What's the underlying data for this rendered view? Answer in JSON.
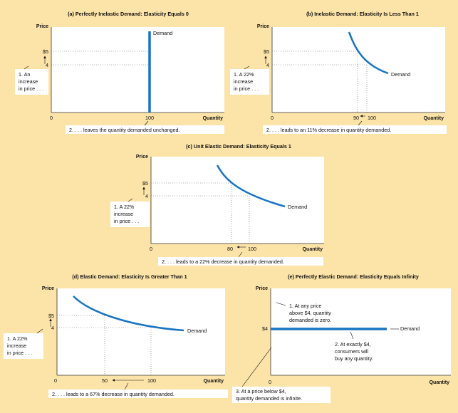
{
  "panels": [
    {
      "title": "(a) Perfectly Inelastic Demand: Elasticity Equals 0",
      "y_axis_label": "Price",
      "x_axis_label": "Quantity",
      "curve_label": "Demand",
      "origin_label": "0",
      "y_ticks": [
        "$5",
        "4"
      ],
      "x_ticks": [
        "100"
      ],
      "note_left": [
        "1. An",
        "increase",
        "in price . . ."
      ],
      "note_bottom": "2. . . . leaves the quantity demanded unchanged."
    },
    {
      "title": "(b) Inelastic Demand: Elasticity Is Less Than 1",
      "y_axis_label": "Price",
      "x_axis_label": "Quantity",
      "curve_label": "Demand",
      "origin_label": "0",
      "y_ticks": [
        "$5",
        "4"
      ],
      "x_ticks": [
        "90",
        "100"
      ],
      "note_left": [
        "1. A 22%",
        "increase",
        "in price . . ."
      ],
      "note_bottom": "2. . . . leads to an 11% decrease in quantity demanded."
    },
    {
      "title": "(c) Unit Elastic Demand: Elasticity Equals 1",
      "y_axis_label": "Price",
      "x_axis_label": "Quantity",
      "curve_label": "Demand",
      "origin_label": "0",
      "y_ticks": [
        "$5",
        "4"
      ],
      "x_ticks": [
        "80",
        "100"
      ],
      "note_left": [
        "1. A 22%",
        "increase",
        "in price . . ."
      ],
      "note_bottom": "2. . . . leads to a 22% decrease in quantity demanded."
    },
    {
      "title": "(d) Elastic Demand: Elasticity Is Greater Than 1",
      "y_axis_label": "Price",
      "x_axis_label": "Quantity",
      "curve_label": "Demand",
      "origin_label": "0",
      "y_ticks": [
        "$5",
        "4"
      ],
      "x_ticks": [
        "50",
        "100"
      ],
      "note_left": [
        "1. A 22%",
        "increase",
        "in price . . ."
      ],
      "note_bottom": "2. . . . leads to a 67% decrease in quantity demanded."
    },
    {
      "title": "(e) Perfectly Elastic Demand: Elasticity Equals Infinity",
      "y_axis_label": "Price",
      "x_axis_label": "Quantity",
      "curve_label": "Demand",
      "origin_label": "0",
      "y_ticks": [
        "$4"
      ],
      "note_1": [
        "1. At any price",
        "above $4, quantity",
        "demanded is zero."
      ],
      "note_2": [
        "2. At exactly $4,",
        "consumers will",
        "buy any quantity."
      ],
      "note_3": [
        "3. At a price below $4,",
        "quantity demanded is infinite."
      ]
    }
  ],
  "colors": {
    "background": "#fce3a8",
    "plot": "#ffffff",
    "curve": "#1874c4",
    "note_box": "#ffffff"
  }
}
